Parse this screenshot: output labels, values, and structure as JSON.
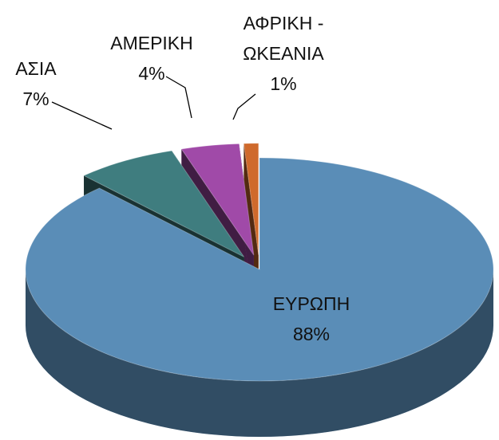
{
  "chart_data": {
    "type": "pie",
    "categories": [
      "ΕΥΡΩΠΗ",
      "ΑΣΙΑ",
      "ΑΜΕΡΙΚΗ",
      "ΑΦΡΙΚΗ - ΩΚΕΑΝΙΑ"
    ],
    "values": [
      88,
      7,
      4,
      1
    ],
    "value_labels": [
      "88%",
      "7%",
      "4%",
      "1%"
    ],
    "colors": [
      "#5a8db7",
      "#3f7d7f",
      "#a04aa8",
      "#cf6a2c"
    ]
  }
}
